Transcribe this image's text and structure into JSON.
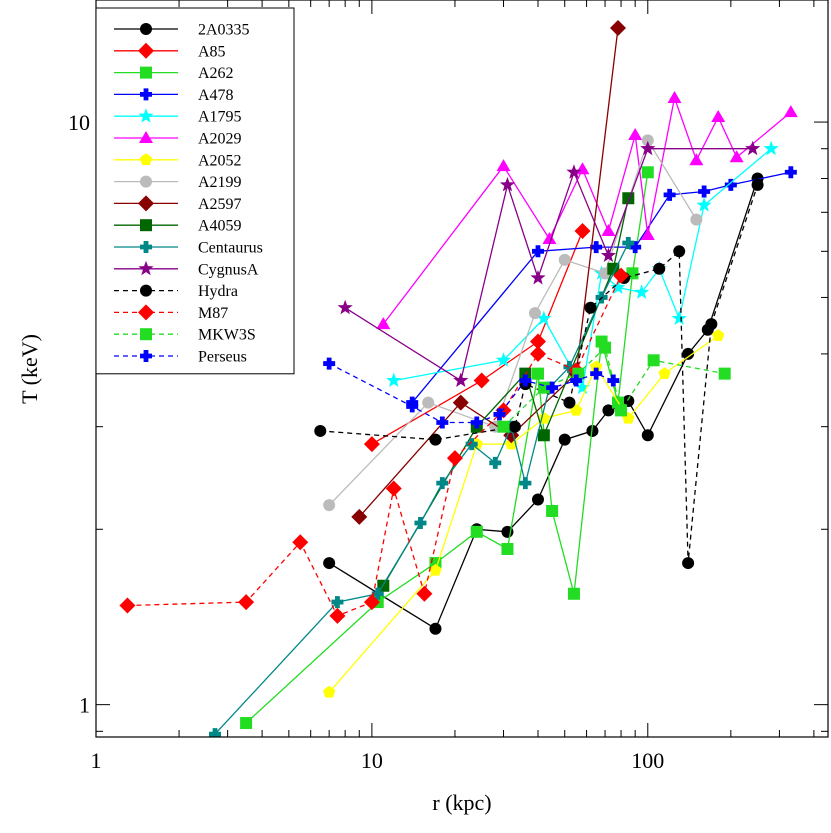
{
  "chart_data": {
    "type": "line",
    "title": "",
    "xlabel": "r (kpc)",
    "ylabel": "T (keV)",
    "xscale": "log",
    "yscale": "log",
    "xlim": [
      1,
      450
    ],
    "ylim": [
      0.88,
      16.2
    ],
    "x_ticks": [
      {
        "value": 1,
        "label": "1"
      },
      {
        "value": 10,
        "label": "10"
      },
      {
        "value": 100,
        "label": "100"
      }
    ],
    "y_ticks": [
      {
        "value": 1,
        "label": "1"
      },
      {
        "value": 10,
        "label": "10"
      }
    ],
    "grid": false,
    "legend": "top-left",
    "series": [
      {
        "name": "2A0335",
        "color": "#000000",
        "marker": "circle",
        "dash": "solid",
        "points": [
          [
            7,
            1.75
          ],
          [
            17,
            1.35
          ],
          [
            24,
            2.0
          ],
          [
            31,
            1.98
          ],
          [
            40,
            2.25
          ],
          [
            50,
            2.85
          ],
          [
            63,
            2.95
          ],
          [
            72,
            3.2
          ],
          [
            80,
            3.25
          ],
          [
            85,
            3.32
          ],
          [
            100,
            2.9
          ],
          [
            140,
            4.0
          ],
          [
            165,
            4.4
          ],
          [
            250,
            8.0
          ]
        ]
      },
      {
        "name": "A85",
        "color": "#ff0000",
        "marker": "diamond",
        "dash": "solid",
        "points": [
          [
            10,
            2.8
          ],
          [
            25,
            3.6
          ],
          [
            40,
            4.2
          ],
          [
            58,
            6.5
          ]
        ]
      },
      {
        "name": "A262",
        "color": "#22dd22",
        "marker": "square",
        "dash": "solid",
        "points": [
          [
            3.5,
            0.93
          ],
          [
            10.5,
            1.5
          ],
          [
            17,
            1.75
          ],
          [
            24,
            1.98
          ],
          [
            31,
            1.85
          ],
          [
            40,
            3.7
          ],
          [
            45,
            2.15
          ],
          [
            54,
            1.55
          ],
          [
            68,
            4.2
          ],
          [
            78,
            3.3
          ],
          [
            88,
            5.5
          ],
          [
            100,
            8.2
          ]
        ]
      },
      {
        "name": "A478",
        "color": "#0000ff",
        "marker": "plus",
        "dash": "solid",
        "points": [
          [
            14,
            3.3
          ],
          [
            40,
            6.0
          ],
          [
            65,
            6.1
          ],
          [
            90,
            6.1
          ],
          [
            120,
            7.5
          ],
          [
            160,
            7.6
          ],
          [
            200,
            7.8
          ],
          [
            330,
            8.2
          ]
        ]
      },
      {
        "name": "A1795",
        "color": "#00ffff",
        "marker": "star",
        "dash": "solid",
        "points": [
          [
            12,
            3.6
          ],
          [
            30,
            3.9
          ],
          [
            42,
            4.6
          ],
          [
            58,
            3.5
          ],
          [
            68,
            5.5
          ],
          [
            78,
            5.2
          ],
          [
            95,
            5.1
          ],
          [
            110,
            5.6
          ],
          [
            130,
            4.6
          ],
          [
            160,
            7.2
          ],
          [
            280,
            9.0
          ]
        ]
      },
      {
        "name": "A2029",
        "color": "#ff00ff",
        "marker": "triangle",
        "dash": "solid",
        "points": [
          [
            11,
            4.5
          ],
          [
            30,
            8.4
          ],
          [
            44,
            6.3
          ],
          [
            58,
            8.3
          ],
          [
            72,
            6.5
          ],
          [
            90,
            9.5
          ],
          [
            100,
            6.4
          ],
          [
            125,
            11.0
          ],
          [
            150,
            8.6
          ],
          [
            180,
            10.2
          ],
          [
            210,
            8.7
          ],
          [
            330,
            10.4
          ]
        ]
      },
      {
        "name": "A2052",
        "color": "#ffff00",
        "marker": "pentagon",
        "dash": "solid",
        "points": [
          [
            7,
            1.05
          ],
          [
            17,
            1.7
          ],
          [
            24,
            2.8
          ],
          [
            32,
            2.8
          ],
          [
            42,
            3.1
          ],
          [
            55,
            3.2
          ],
          [
            65,
            3.8
          ],
          [
            85,
            3.1
          ],
          [
            115,
            3.7
          ],
          [
            180,
            4.3
          ]
        ]
      },
      {
        "name": "A2199",
        "color": "#bbbbbb",
        "marker": "circle",
        "dash": "solid",
        "points": [
          [
            7,
            2.2
          ],
          [
            16,
            3.3
          ],
          [
            28,
            3.0
          ],
          [
            39,
            4.7
          ],
          [
            50,
            5.8
          ],
          [
            70,
            5.5
          ],
          [
            100,
            9.3
          ],
          [
            150,
            6.8
          ]
        ]
      },
      {
        "name": "A2597",
        "color": "#880000",
        "marker": "diamond",
        "dash": "solid",
        "points": [
          [
            9,
            2.1
          ],
          [
            21,
            3.3
          ],
          [
            32,
            2.9
          ],
          [
            55,
            3.7
          ],
          [
            78,
            14.5
          ]
        ]
      },
      {
        "name": "A4059",
        "color": "#006600",
        "marker": "square",
        "dash": "solid",
        "points": [
          [
            11,
            1.6
          ],
          [
            24,
            3.0
          ],
          [
            36,
            3.7
          ],
          [
            42,
            2.9
          ],
          [
            75,
            5.6
          ],
          [
            85,
            7.4
          ]
        ]
      },
      {
        "name": "Centaurus",
        "color": "#008888",
        "marker": "plus",
        "dash": "solid",
        "points": [
          [
            2.7,
            0.89
          ],
          [
            7.5,
            1.5
          ],
          [
            10.5,
            1.55
          ],
          [
            15,
            2.05
          ],
          [
            18,
            2.4
          ],
          [
            23,
            2.8
          ],
          [
            28,
            2.6
          ],
          [
            32,
            3.0
          ],
          [
            36,
            2.4
          ],
          [
            44,
            3.5
          ],
          [
            52,
            3.8
          ],
          [
            68,
            5.0
          ],
          [
            85,
            6.2
          ]
        ]
      },
      {
        "name": "CygnusA",
        "color": "#880088",
        "marker": "star",
        "dash": "solid",
        "points": [
          [
            8,
            4.8
          ],
          [
            21,
            3.6
          ],
          [
            31,
            7.8
          ],
          [
            40,
            5.4
          ],
          [
            54,
            8.2
          ],
          [
            72,
            5.9
          ],
          [
            100,
            9.0
          ],
          [
            240,
            9.0
          ]
        ]
      },
      {
        "name": "Hydra",
        "color": "#000000",
        "marker": "circle",
        "dash": "dashed",
        "points": [
          [
            6.5,
            2.95
          ],
          [
            17,
            2.85
          ],
          [
            33,
            3.0
          ],
          [
            36,
            3.55
          ],
          [
            52,
            3.3
          ],
          [
            62,
            4.8
          ],
          [
            82,
            5.4
          ],
          [
            110,
            5.6
          ],
          [
            130,
            6.0
          ],
          [
            140,
            1.75
          ],
          [
            170,
            4.5
          ],
          [
            250,
            7.8
          ]
        ]
      },
      {
        "name": "M87",
        "color": "#ff0000",
        "marker": "diamond",
        "dash": "dashed",
        "points": [
          [
            1.3,
            1.48
          ],
          [
            3.5,
            1.5
          ],
          [
            5.5,
            1.9
          ],
          [
            7.5,
            1.42
          ],
          [
            10,
            1.5
          ],
          [
            12,
            2.35
          ],
          [
            15.5,
            1.55
          ],
          [
            20,
            2.65
          ],
          [
            30,
            3.2
          ],
          [
            40,
            4.0
          ],
          [
            55,
            3.75
          ],
          [
            80,
            5.45
          ]
        ]
      },
      {
        "name": "MKW3S",
        "color": "#22dd22",
        "marker": "square",
        "dash": "dashed",
        "points": [
          [
            30,
            3.0
          ],
          [
            42,
            3.5
          ],
          [
            56,
            3.7
          ],
          [
            70,
            4.1
          ],
          [
            80,
            3.2
          ],
          [
            105,
            3.9
          ],
          [
            190,
            3.7
          ]
        ]
      },
      {
        "name": "Perseus",
        "color": "#0000ff",
        "marker": "plus",
        "dash": "dashed",
        "points": [
          [
            7,
            3.85
          ],
          [
            14,
            3.25
          ],
          [
            18,
            3.05
          ],
          [
            24,
            3.05
          ],
          [
            29,
            3.15
          ],
          [
            36,
            3.6
          ],
          [
            45,
            3.5
          ],
          [
            55,
            3.6
          ],
          [
            65,
            3.7
          ],
          [
            75,
            3.6
          ]
        ]
      }
    ]
  }
}
